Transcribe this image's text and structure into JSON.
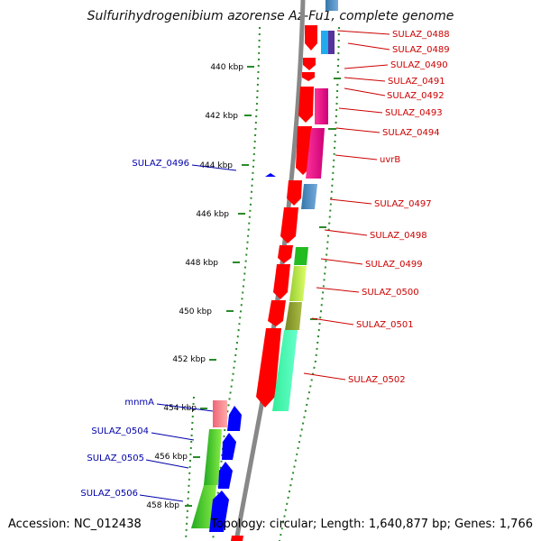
{
  "header": {
    "title": "Sulfurihydrogenibium azorense Az-Fu1, complete genome"
  },
  "footer": {
    "accession": "Accession: NC_012438",
    "summary": "Topology: circular; Length: 1,640,877 bp; Genes: 1,766"
  },
  "ruler": {
    "ticks": [
      "440 kbp",
      "442 kbp",
      "444 kbp",
      "446 kbp",
      "448 kbp",
      "450 kbp",
      "452 kbp",
      "454 kbp",
      "456 kbp",
      "458 kbp"
    ]
  },
  "genes_right": [
    "SULAZ_0488",
    "SULAZ_0489",
    "SULAZ_0490",
    "SULAZ_0491",
    "SULAZ_0492",
    "SULAZ_0493",
    "SULAZ_0494",
    "uvrB",
    "SULAZ_0497",
    "SULAZ_0498",
    "SULAZ_0499",
    "SULAZ_0500",
    "SULAZ_0501",
    "SULAZ_0502"
  ],
  "genes_left": [
    "SULAZ_0496",
    "mnmA",
    "SULAZ_0504",
    "SULAZ_0505",
    "SULAZ_0506"
  ],
  "colors": {
    "forward_strand": "#ff0000",
    "reverse_strand": "#0000ff",
    "label_right": "#cc0000",
    "label_left": "#0000aa",
    "backbone": "#888888",
    "dotted_ring": "#2a8a2a"
  }
}
